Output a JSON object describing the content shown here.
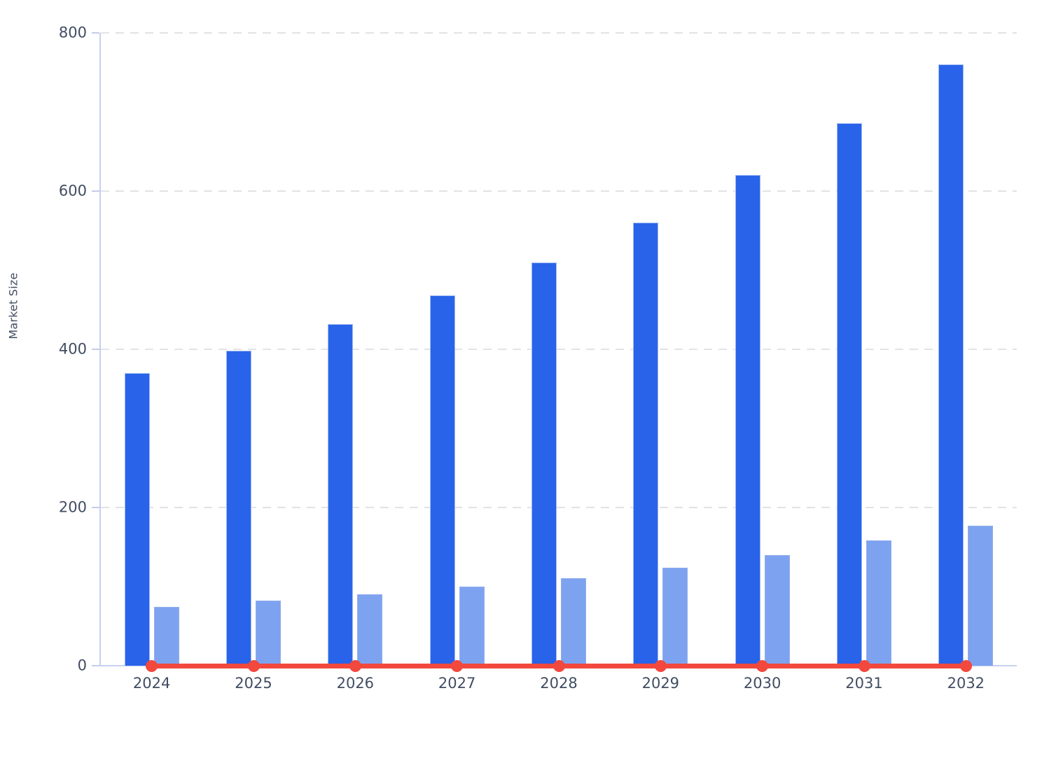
{
  "chart_data": {
    "type": "bar",
    "title": "",
    "xlabel": "",
    "ylabel": "Market Size",
    "categories": [
      "2024",
      "2025",
      "2026",
      "2027",
      "2028",
      "2029",
      "2030",
      "2031",
      "2032"
    ],
    "series": [
      {
        "name": "primary-market-size-bars",
        "type": "bar",
        "color": "#2963e9",
        "values": [
          370,
          398,
          432,
          468,
          510,
          560,
          620,
          686,
          760
        ]
      },
      {
        "name": "secondary-market-size-bars",
        "type": "bar",
        "color": "#7da3f0",
        "values": [
          74,
          82,
          90,
          100,
          111,
          124,
          140,
          158,
          177
        ]
      },
      {
        "name": "baseline-marker-line",
        "type": "line",
        "color": "#f2483d",
        "values": [
          0,
          0,
          0,
          0,
          0,
          0,
          0,
          0,
          0
        ]
      }
    ],
    "y_ticks": [
      0,
      200,
      400,
      600,
      800
    ],
    "ylim": [
      0,
      800
    ],
    "grid": "horizontal-dashed",
    "legend": "none"
  },
  "colors": {
    "primary_bar": "#2963e9",
    "secondary_bar": "#7da3f0",
    "marker_line": "#f2483d",
    "axis_line": "#c6d0ef",
    "gridline": "#e2e3e6",
    "tick_text": "#414d62",
    "background": "#ffffff"
  }
}
